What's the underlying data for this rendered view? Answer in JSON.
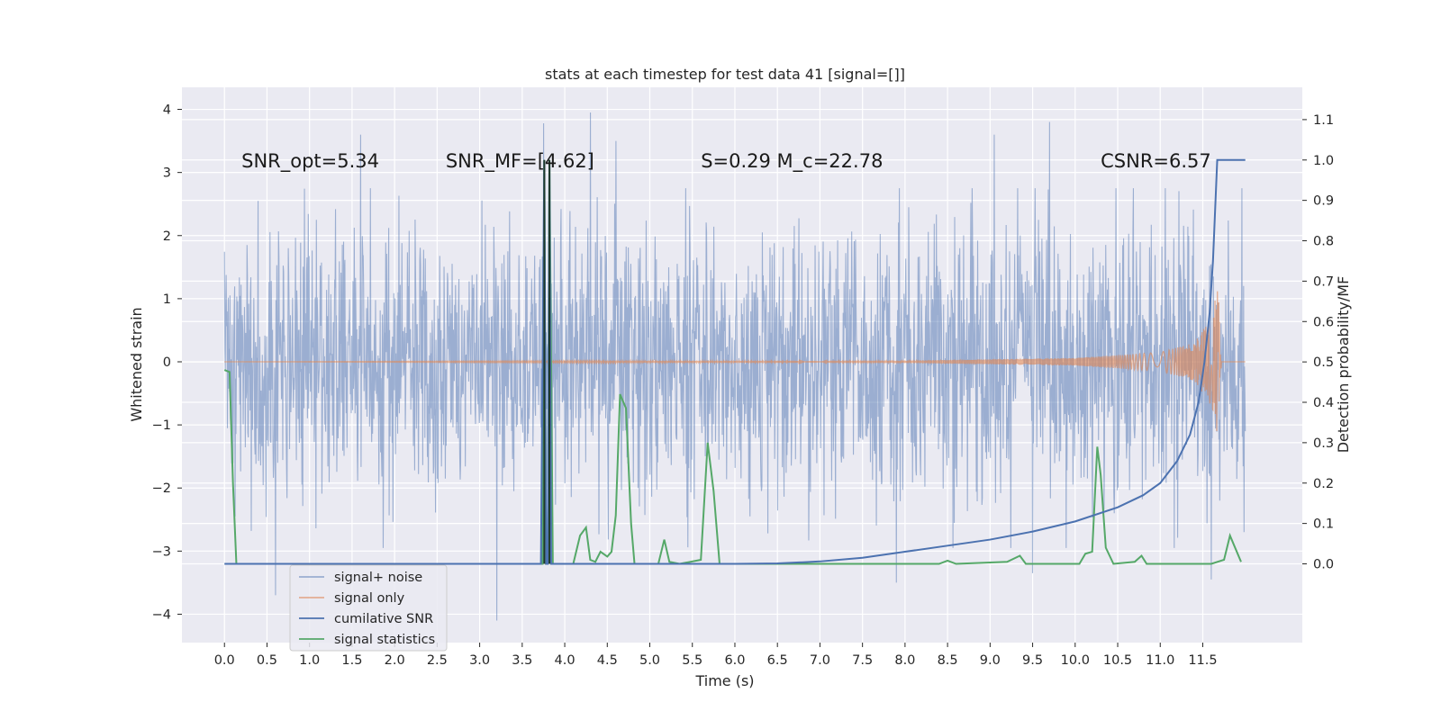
{
  "chart_data": {
    "type": "line",
    "title": "stats at each timestep for test data 41 [signal=[]]",
    "xlabel": "Time (s)",
    "ylabel": "Whitened strain",
    "y2label": "Detection probability/MF",
    "xlim": [
      -0.5,
      12.67
    ],
    "ylim": [
      -4.45,
      4.35
    ],
    "y2lim": [
      -0.195,
      1.18
    ],
    "grid": true,
    "legend_position": "lower-left",
    "x_ticks": [
      "0.0",
      "0.5",
      "1.0",
      "1.5",
      "2.0",
      "2.5",
      "3.0",
      "3.5",
      "4.0",
      "4.5",
      "5.0",
      "5.5",
      "6.0",
      "6.5",
      "7.0",
      "7.5",
      "8.0",
      "8.5",
      "9.0",
      "9.5",
      "10.0",
      "10.5",
      "11.0",
      "11.5"
    ],
    "y_ticks": [
      "-4",
      "-3",
      "-2",
      "-1",
      "0",
      "1",
      "2",
      "3",
      "4"
    ],
    "y2_ticks": [
      "0.0",
      "0.1",
      "0.2",
      "0.3",
      "0.4",
      "0.5",
      "0.6",
      "0.7",
      "0.8",
      "0.9",
      "1.0",
      "1.1"
    ],
    "annotations": [
      {
        "text": "SNR_opt=5.34",
        "x": 0.2,
        "y": 3.08
      },
      {
        "text": "SNR_MF=[4.62]",
        "x": 2.6,
        "y": 3.08
      },
      {
        "text": "S=0.29   M_c=22.78",
        "x": 5.6,
        "y": 3.08
      },
      {
        "text": "CSNR=6.57",
        "x": 10.3,
        "y": 3.08
      }
    ],
    "series": [
      {
        "name": "signal+ noise",
        "color": "#4c72b0",
        "axis": "left",
        "x_range": [
          0,
          12.0
        ],
        "typical_band": [
          -1.5,
          1.8
        ],
        "peaks": [
          {
            "x": 0.6,
            "y": -3.7
          },
          {
            "x": 1.6,
            "y": 3.6
          },
          {
            "x": 3.2,
            "y": -4.1
          },
          {
            "x": 3.75,
            "y": 3.78
          },
          {
            "x": 4.3,
            "y": 3.95
          },
          {
            "x": 4.6,
            "y": 3.5
          },
          {
            "x": 7.9,
            "y": -3.5
          },
          {
            "x": 9.05,
            "y": 3.6
          },
          {
            "x": 9.5,
            "y": -3.35
          },
          {
            "x": 9.7,
            "y": 3.8
          },
          {
            "x": 11.6,
            "y": -3.45
          }
        ]
      },
      {
        "name": "signal only",
        "color": "#dd8452",
        "axis": "left",
        "x_range": [
          0,
          12.0
        ],
        "envelope": [
          {
            "x": 0.0,
            "y": 0.0
          },
          {
            "x": 8.0,
            "y": 0.02
          },
          {
            "x": 10.0,
            "y": 0.06
          },
          {
            "x": 11.0,
            "y": 0.15
          },
          {
            "x": 11.4,
            "y": 0.3
          },
          {
            "x": 11.6,
            "y": 0.7
          },
          {
            "x": 11.68,
            "y": 1.2
          },
          {
            "x": 11.72,
            "y": 0.0
          }
        ]
      },
      {
        "name": "cumilative SNR",
        "color": "#4c72b0",
        "axis": "right",
        "points": [
          {
            "x": 0.0,
            "y": 0.0
          },
          {
            "x": 3.72,
            "y": 0.0
          },
          {
            "x": 3.76,
            "y": 1.0
          },
          {
            "x": 3.78,
            "y": 0.0
          },
          {
            "x": 3.8,
            "y": 0.0
          },
          {
            "x": 3.82,
            "y": 1.0
          },
          {
            "x": 3.84,
            "y": 0.0
          },
          {
            "x": 6.0,
            "y": 0.0
          },
          {
            "x": 6.5,
            "y": 0.001
          },
          {
            "x": 7.0,
            "y": 0.006
          },
          {
            "x": 7.5,
            "y": 0.015
          },
          {
            "x": 8.0,
            "y": 0.03
          },
          {
            "x": 8.5,
            "y": 0.045
          },
          {
            "x": 9.0,
            "y": 0.06
          },
          {
            "x": 9.5,
            "y": 0.08
          },
          {
            "x": 10.0,
            "y": 0.105
          },
          {
            "x": 10.5,
            "y": 0.14
          },
          {
            "x": 10.8,
            "y": 0.17
          },
          {
            "x": 11.0,
            "y": 0.2
          },
          {
            "x": 11.2,
            "y": 0.255
          },
          {
            "x": 11.35,
            "y": 0.32
          },
          {
            "x": 11.45,
            "y": 0.4
          },
          {
            "x": 11.52,
            "y": 0.5
          },
          {
            "x": 11.58,
            "y": 0.62
          },
          {
            "x": 11.62,
            "y": 0.75
          },
          {
            "x": 11.65,
            "y": 0.9
          },
          {
            "x": 11.67,
            "y": 1.0
          },
          {
            "x": 12.0,
            "y": 1.0
          }
        ]
      },
      {
        "name": "signal statistics",
        "color": "#55a868",
        "axis": "right",
        "points": [
          {
            "x": 0.0,
            "y": 0.48
          },
          {
            "x": 0.06,
            "y": 0.475
          },
          {
            "x": 0.1,
            "y": 0.2
          },
          {
            "x": 0.14,
            "y": 0.0
          },
          {
            "x": 3.7,
            "y": 0.0
          },
          {
            "x": 3.74,
            "y": 0.0
          },
          {
            "x": 3.76,
            "y": 1.0
          },
          {
            "x": 3.78,
            "y": 0.0
          },
          {
            "x": 3.8,
            "y": 0.0
          },
          {
            "x": 3.82,
            "y": 1.0
          },
          {
            "x": 3.86,
            "y": 0.0
          },
          {
            "x": 4.1,
            "y": 0.0
          },
          {
            "x": 4.18,
            "y": 0.07
          },
          {
            "x": 4.25,
            "y": 0.09
          },
          {
            "x": 4.3,
            "y": 0.01
          },
          {
            "x": 4.36,
            "y": 0.005
          },
          {
            "x": 4.42,
            "y": 0.03
          },
          {
            "x": 4.5,
            "y": 0.018
          },
          {
            "x": 4.55,
            "y": 0.03
          },
          {
            "x": 4.6,
            "y": 0.12
          },
          {
            "x": 4.65,
            "y": 0.42
          },
          {
            "x": 4.72,
            "y": 0.385
          },
          {
            "x": 4.78,
            "y": 0.1
          },
          {
            "x": 4.82,
            "y": 0.0
          },
          {
            "x": 5.1,
            "y": 0.0
          },
          {
            "x": 5.17,
            "y": 0.06
          },
          {
            "x": 5.23,
            "y": 0.005
          },
          {
            "x": 5.35,
            "y": 0.0
          },
          {
            "x": 5.6,
            "y": 0.01
          },
          {
            "x": 5.68,
            "y": 0.3
          },
          {
            "x": 5.75,
            "y": 0.18
          },
          {
            "x": 5.82,
            "y": 0.0
          },
          {
            "x": 8.4,
            "y": 0.0
          },
          {
            "x": 8.5,
            "y": 0.008
          },
          {
            "x": 8.6,
            "y": 0.0
          },
          {
            "x": 9.2,
            "y": 0.005
          },
          {
            "x": 9.35,
            "y": 0.02
          },
          {
            "x": 9.42,
            "y": 0.0
          },
          {
            "x": 10.05,
            "y": 0.0
          },
          {
            "x": 10.12,
            "y": 0.025
          },
          {
            "x": 10.2,
            "y": 0.03
          },
          {
            "x": 10.26,
            "y": 0.29
          },
          {
            "x": 10.3,
            "y": 0.22
          },
          {
            "x": 10.36,
            "y": 0.04
          },
          {
            "x": 10.45,
            "y": 0.0
          },
          {
            "x": 10.7,
            "y": 0.005
          },
          {
            "x": 10.78,
            "y": 0.02
          },
          {
            "x": 10.84,
            "y": 0.0
          },
          {
            "x": 11.6,
            "y": 0.0
          },
          {
            "x": 11.75,
            "y": 0.01
          },
          {
            "x": 11.82,
            "y": 0.07
          },
          {
            "x": 11.88,
            "y": 0.04
          },
          {
            "x": 11.95,
            "y": 0.005
          }
        ]
      }
    ]
  }
}
